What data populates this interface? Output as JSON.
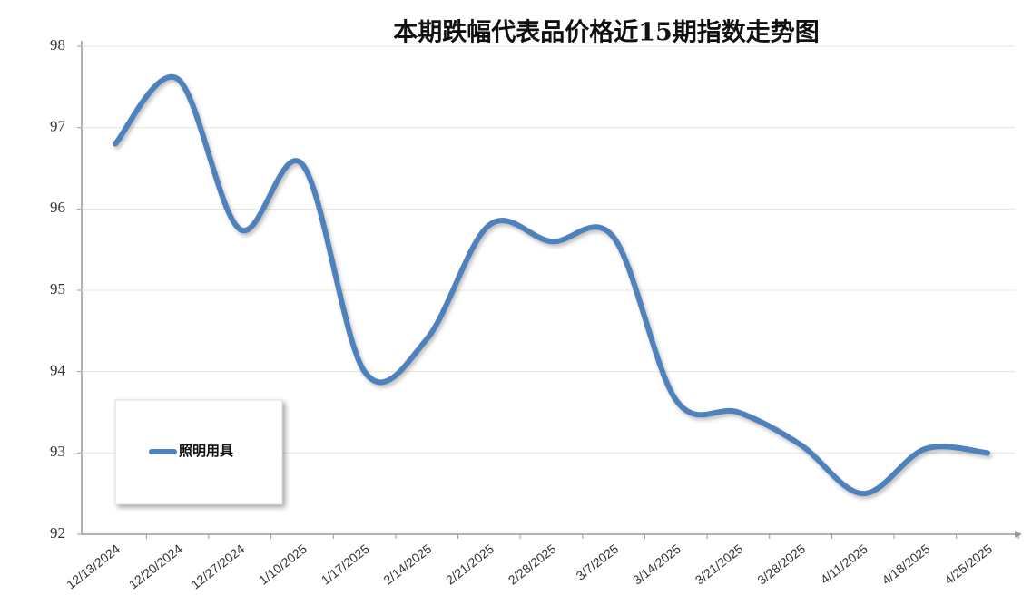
{
  "chart_data": {
    "type": "line",
    "title": "本期跌幅代表品价格近15期指数走势图",
    "categories": [
      "12/13/2024",
      "12/20/2024",
      "12/27/2024",
      "1/10/2025",
      "1/17/2025",
      "2/14/2025",
      "2/21/2025",
      "2/28/2025",
      "3/7/2025",
      "3/14/2025",
      "3/21/2025",
      "3/28/2025",
      "4/11/2025",
      "4/18/2025",
      "4/25/2025"
    ],
    "series": [
      {
        "name": "照明用具",
        "color": "#4f81bd",
        "values": [
          96.8,
          97.6,
          95.75,
          96.55,
          94.0,
          94.4,
          95.8,
          95.6,
          95.65,
          93.65,
          93.5,
          93.1,
          92.5,
          93.05,
          93.0
        ]
      }
    ],
    "ylim": [
      92,
      98
    ],
    "yticks": [
      92,
      93,
      94,
      95,
      96,
      97,
      98
    ],
    "grid": true
  }
}
